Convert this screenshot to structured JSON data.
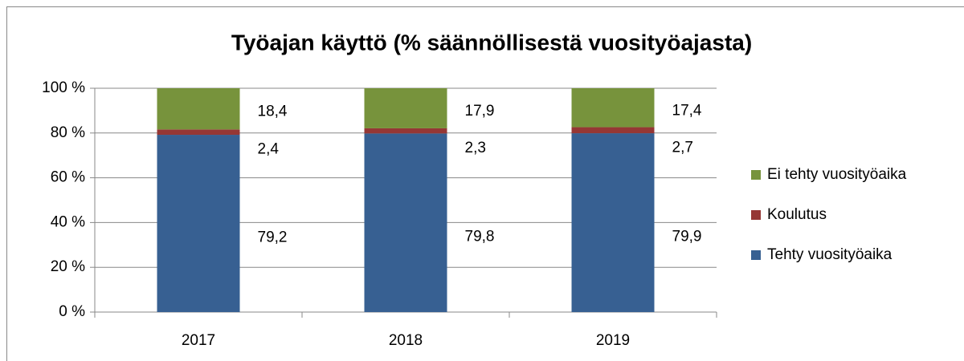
{
  "chart_data": {
    "type": "stacked_bar",
    "title": "Työajan käyttö (% säännöllisestä vuosityöajasta)",
    "categories": [
      "2017",
      "2018",
      "2019"
    ],
    "series": [
      {
        "name": "Tehty vuosityöaika",
        "color": "#376092",
        "values": [
          79.2,
          79.8,
          79.9
        ],
        "value_labels": [
          "79,2",
          "79,8",
          "79,9"
        ]
      },
      {
        "name": "Koulutus",
        "color": "#953735",
        "values": [
          2.4,
          2.3,
          2.7
        ],
        "value_labels": [
          "2,4",
          "2,3",
          "2,7"
        ]
      },
      {
        "name": "Ei tehty vuosityöaika",
        "color": "#77933c",
        "values": [
          18.4,
          17.9,
          17.4
        ],
        "value_labels": [
          "18,4",
          "17,9",
          "17,4"
        ]
      }
    ],
    "ylim": [
      0,
      100
    ],
    "yticks": [
      {
        "value": 0,
        "label": "0 %"
      },
      {
        "value": 20,
        "label": "20 %"
      },
      {
        "value": 40,
        "label": "40 %"
      },
      {
        "value": 60,
        "label": "60 %"
      },
      {
        "value": 80,
        "label": "80 %"
      },
      {
        "value": 100,
        "label": "100 %"
      }
    ],
    "grid": true,
    "legend": "right"
  }
}
